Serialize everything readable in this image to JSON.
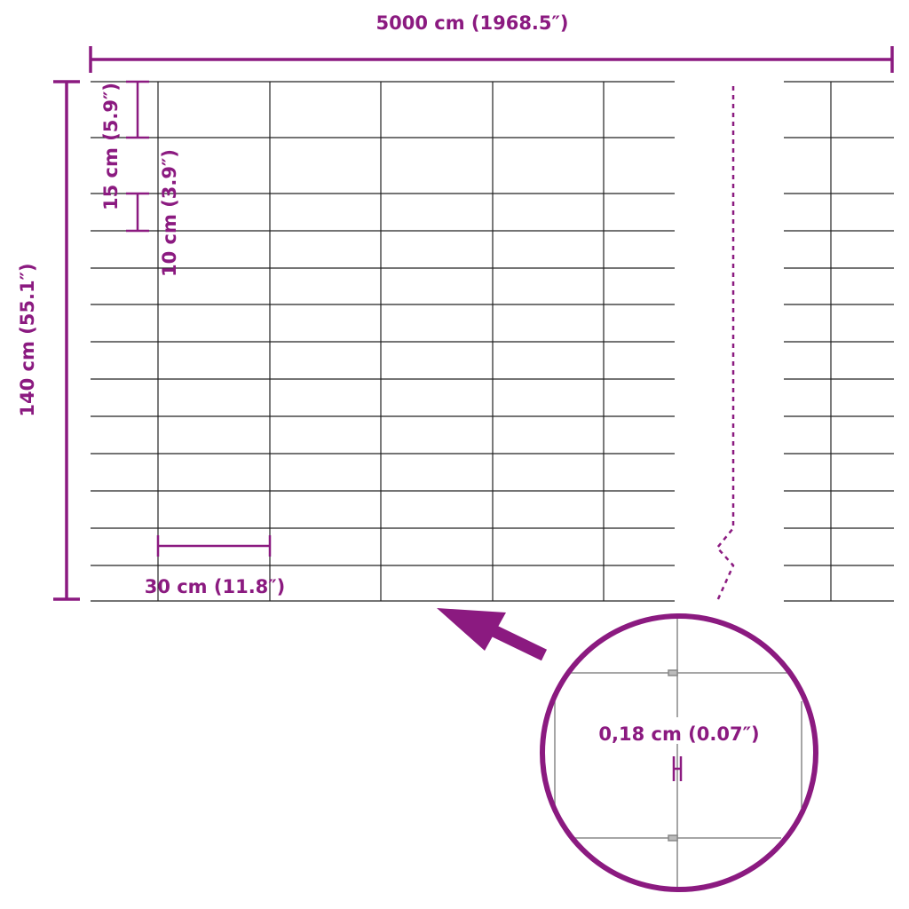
{
  "colors": {
    "accent": "#8b1a80",
    "wire": "#222222",
    "detail_wire": "#888888"
  },
  "dimensions": {
    "length": "5000 cm (1968.5″)",
    "height": "140 cm (55.1″)",
    "top_mesh_spacing": "15 cm (5.9″)",
    "lower_mesh_spacing": "10 cm (3.9″)",
    "post_spacing": "30 cm (11.8″)",
    "wire_diameter": "0,18 cm (0.07″)"
  },
  "icons": {
    "arrow": "arrow-pointing-to-mesh-icon",
    "magnifier": "detail-circle"
  }
}
